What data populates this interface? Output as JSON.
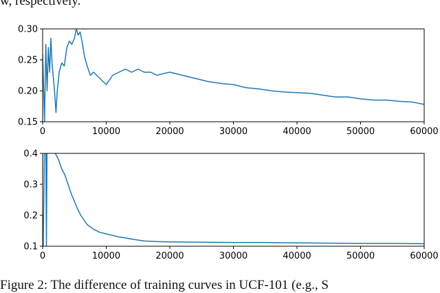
{
  "page": {
    "top_fragment": "w, respectively.",
    "caption_fragment": "Figure 2: The difference of training curves in UCF-101 (e.g., S"
  },
  "chart_data": [
    {
      "type": "line",
      "panel": "top",
      "title": "",
      "xlabel": "",
      "ylabel": "",
      "xlim": [
        0,
        60000
      ],
      "ylim": [
        0.15,
        0.3
      ],
      "xticks": [
        0,
        10000,
        20000,
        30000,
        40000,
        50000,
        60000
      ],
      "xtick_labels": [
        "0",
        "10000",
        "20000",
        "30000",
        "40000",
        "50000",
        "60000"
      ],
      "yticks": [
        0.15,
        0.2,
        0.25,
        0.3
      ],
      "ytick_labels": [
        "0.15",
        "0.20",
        "0.25",
        "0.30"
      ],
      "grid": false,
      "color": "#1f77b4",
      "series": [
        {
          "x": [
            0,
            300,
            500,
            700,
            900,
            1100,
            1300,
            1500,
            1700,
            1900,
            2100,
            2300,
            2600,
            3000,
            3400,
            3800,
            4200,
            4600,
            5000,
            5300,
            5600,
            5900,
            6200,
            6600,
            7000,
            7500,
            8000,
            9000,
            10000,
            11000,
            12000,
            13000,
            14000,
            15000,
            16000,
            17000,
            18000,
            19000,
            20000,
            22000,
            24000,
            26000,
            28000,
            30000,
            32000,
            34000,
            36000,
            38000,
            40000,
            42000,
            44000,
            46000,
            48000,
            50000,
            52000,
            54000,
            56000,
            58000,
            60000
          ],
          "y": [
            0.26,
            0.15,
            0.275,
            0.2,
            0.27,
            0.23,
            0.285,
            0.24,
            0.22,
            0.195,
            0.165,
            0.2,
            0.23,
            0.245,
            0.24,
            0.27,
            0.28,
            0.275,
            0.285,
            0.3,
            0.29,
            0.295,
            0.28,
            0.255,
            0.24,
            0.225,
            0.23,
            0.22,
            0.21,
            0.225,
            0.23,
            0.235,
            0.23,
            0.235,
            0.23,
            0.23,
            0.225,
            0.228,
            0.23,
            0.225,
            0.22,
            0.215,
            0.212,
            0.21,
            0.205,
            0.203,
            0.2,
            0.198,
            0.197,
            0.196,
            0.193,
            0.19,
            0.19,
            0.187,
            0.185,
            0.185,
            0.183,
            0.182,
            0.178
          ]
        }
      ]
    },
    {
      "type": "line",
      "panel": "bottom",
      "title": "",
      "xlabel": "",
      "ylabel": "",
      "xlim": [
        0,
        60000
      ],
      "ylim": [
        0.1,
        0.4
      ],
      "xticks": [
        0,
        10000,
        20000,
        30000,
        40000,
        50000,
        60000
      ],
      "xtick_labels": [
        "0",
        "10000",
        "20000",
        "30000",
        "40000",
        "50000",
        "60000"
      ],
      "yticks": [
        0.1,
        0.2,
        0.3,
        0.4
      ],
      "ytick_labels": [
        "0.1",
        "0.2",
        "0.3",
        "0.4"
      ],
      "grid": false,
      "color": "#1f77b4",
      "series": [
        {
          "x": [
            0,
            100,
            300,
            500,
            600,
            700,
            900,
            1200,
            1600,
            2000,
            2500,
            3000,
            3500,
            4000,
            4500,
            5000,
            5500,
            6000,
            7000,
            8000,
            9000,
            10000,
            11000,
            12000,
            13000,
            14000,
            15000,
            16000,
            18000,
            20000,
            25000,
            30000,
            35000,
            40000,
            45000,
            50000,
            55000,
            60000
          ],
          "y": [
            0.2,
            0.1,
            0.45,
            0.45,
            0.1,
            0.45,
            0.5,
            0.5,
            0.45,
            0.4,
            0.38,
            0.35,
            0.33,
            0.3,
            0.27,
            0.245,
            0.22,
            0.2,
            0.17,
            0.155,
            0.145,
            0.14,
            0.135,
            0.13,
            0.127,
            0.123,
            0.12,
            0.117,
            0.115,
            0.114,
            0.113,
            0.112,
            0.112,
            0.111,
            0.11,
            0.109,
            0.109,
            0.108
          ]
        }
      ]
    }
  ]
}
